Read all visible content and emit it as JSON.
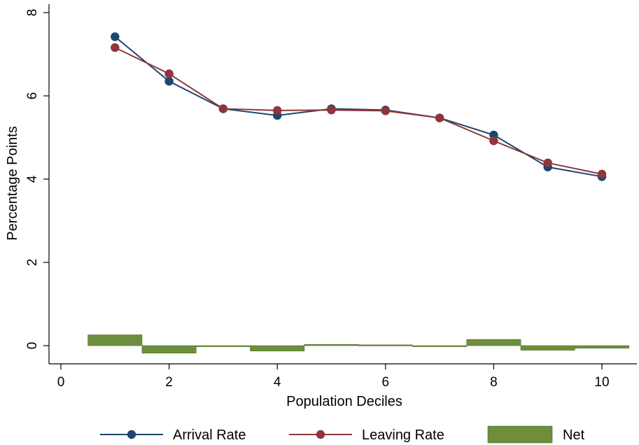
{
  "chart_data": {
    "type": "line",
    "xlabel": "Population Deciles",
    "ylabel": "Percentage Points",
    "xlim": [
      0,
      10.6
    ],
    "ylim": [
      -0.4,
      8.2
    ],
    "x_ticks": [
      0,
      2,
      4,
      6,
      8,
      10
    ],
    "y_ticks": [
      0,
      2,
      4,
      6,
      8
    ],
    "x": [
      1,
      2,
      3,
      4,
      5,
      6,
      7,
      8,
      9,
      10
    ],
    "series": [
      {
        "name": "Arrival Rate",
        "kind": "line-marker",
        "color": "#1a476f",
        "values": [
          7.42,
          6.35,
          5.69,
          5.53,
          5.69,
          5.66,
          5.47,
          5.06,
          4.29,
          4.06
        ]
      },
      {
        "name": "Leaving Rate",
        "kind": "line-marker",
        "color": "#90353b",
        "values": [
          7.16,
          6.53,
          5.69,
          5.65,
          5.66,
          5.64,
          5.47,
          4.92,
          4.39,
          4.12
        ]
      },
      {
        "name": "Net",
        "kind": "bar",
        "color": "#6e8e3e",
        "values": [
          0.26,
          -0.18,
          -0.01,
          -0.13,
          0.03,
          0.02,
          0.0,
          0.15,
          -0.11,
          -0.06
        ]
      }
    ],
    "grid": false,
    "legend_position": "bottom"
  }
}
